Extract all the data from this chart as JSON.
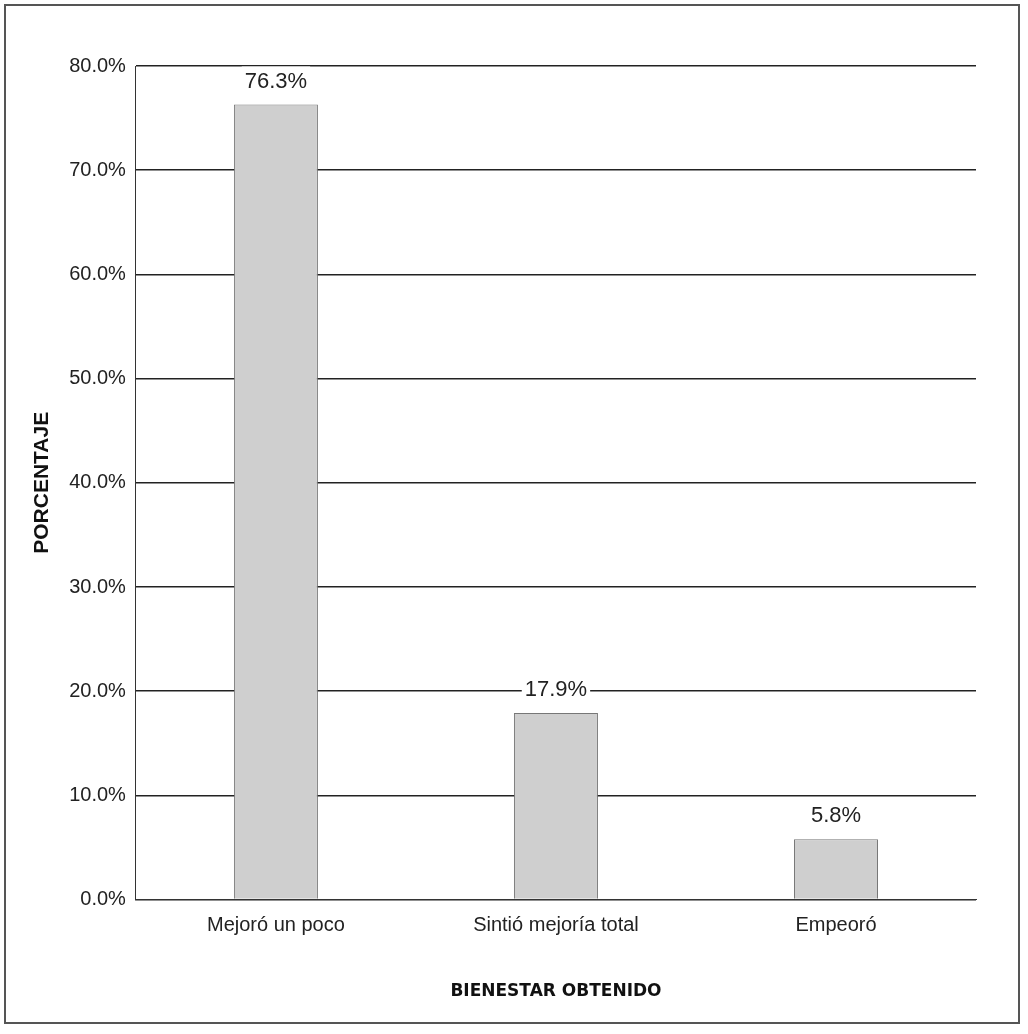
{
  "chart_data": {
    "type": "bar",
    "xlabel": "BIENESTAR OBTENIDO",
    "ylabel": "PORCENTAJE",
    "categories": [
      "Mejoró un poco",
      "Sintió mejoría total",
      "Empeoró"
    ],
    "values": [
      76.3,
      17.9,
      5.8
    ],
    "value_labels": [
      "76.3%",
      "17.9%",
      "5.8%"
    ],
    "color": "#cfcfcf",
    "ylim": [
      0,
      80
    ],
    "yticks": [
      {
        "value": 0,
        "label": "0.0%"
      },
      {
        "value": 10,
        "label": "10.0%"
      },
      {
        "value": 20,
        "label": "20.0%"
      },
      {
        "value": 30,
        "label": "30.0%"
      },
      {
        "value": 40,
        "label": "40.0%"
      },
      {
        "value": 50,
        "label": "50.0%"
      },
      {
        "value": 60,
        "label": "60.0%"
      },
      {
        "value": 70,
        "label": "70.0%"
      },
      {
        "value": 80,
        "label": "80.0%"
      }
    ],
    "grid": "y",
    "legend": false
  }
}
